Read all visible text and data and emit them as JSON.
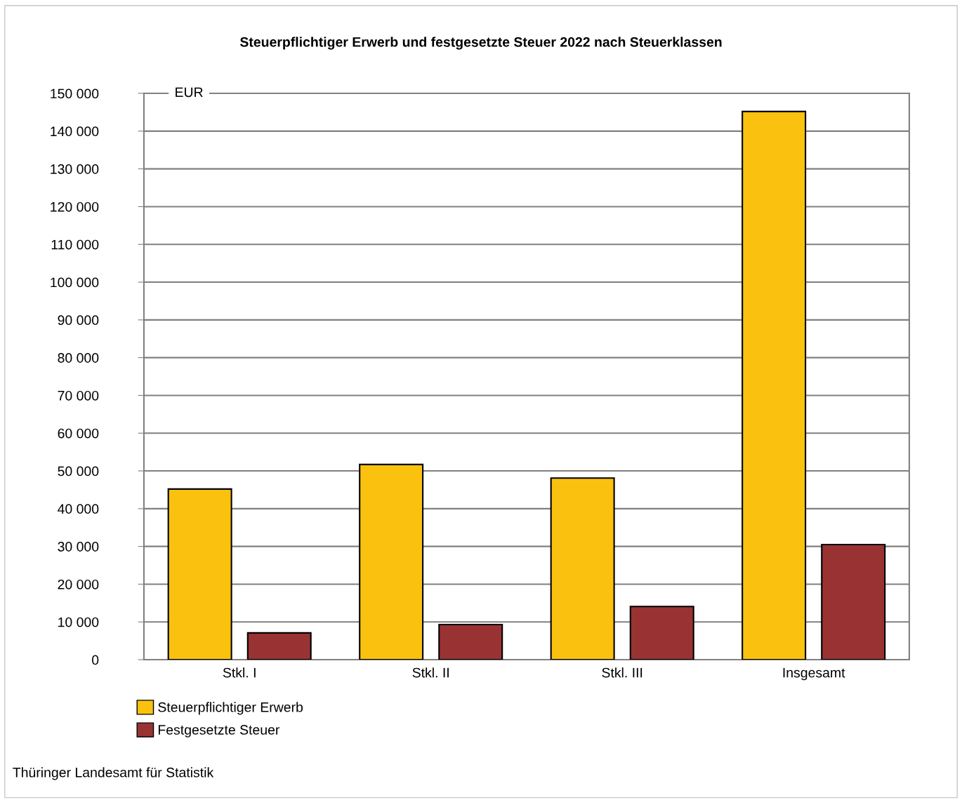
{
  "chart_data": {
    "type": "bar",
    "title": "Steuerpflichtiger Erwerb und festgesetzte Steuer 2022 nach Steuerklassen",
    "ylabel": "EUR",
    "categories": [
      "Stkl. I",
      "Stkl. II",
      "Stkl. III",
      "Insgesamt"
    ],
    "series": [
      {
        "name": "Steuerpflichtiger Erwerb",
        "color": "#fac20e",
        "values": [
          45200,
          51700,
          48100,
          145200
        ]
      },
      {
        "name": "Festgesetzte Steuer",
        "color": "#993333",
        "values": [
          7100,
          9300,
          14100,
          30500
        ]
      }
    ],
    "ylim": [
      0,
      150000
    ],
    "yticks": [
      0,
      {
        "value": 10000,
        "label": "10 000"
      },
      {
        "value": 20000,
        "label": "20 000"
      },
      {
        "value": 30000,
        "label": "30 000"
      },
      {
        "value": 40000,
        "label": "40 000"
      },
      {
        "value": 50000,
        "label": "50 000"
      },
      {
        "value": 60000,
        "label": "60 000"
      },
      {
        "value": 70000,
        "label": "70 000"
      },
      {
        "value": 80000,
        "label": "80 000"
      },
      {
        "value": 90000,
        "label": "90 000"
      },
      {
        "value": 100000,
        "label": "100 000"
      },
      {
        "value": 110000,
        "label": "110 000"
      },
      {
        "value": 120000,
        "label": "120 000"
      },
      {
        "value": 130000,
        "label": "130 000"
      },
      {
        "value": 140000,
        "label": "140 000"
      },
      {
        "value": 150000,
        "label": "150 000"
      }
    ],
    "grid": "y",
    "legend": "bottom left",
    "annotations": [
      "Thüringer Landesamt für Statistik"
    ]
  }
}
